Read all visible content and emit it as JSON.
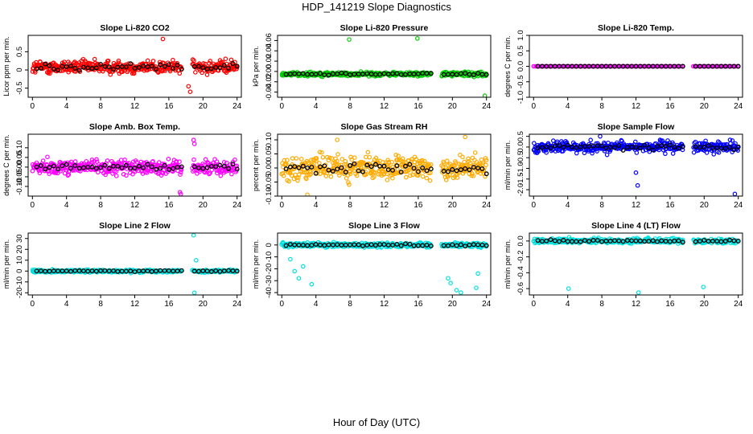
{
  "title": "HDP_141219  Slope Diagnostics",
  "xlabel": "Hour of Day (UTC)",
  "chart_data": [
    {
      "type": "scatter",
      "title": "Slope Li-820 CO2",
      "ylabel": "Licor ppm per min.",
      "color": "#ff0000",
      "ylim": [
        -0.75,
        0.95
      ],
      "yticks": [
        -0.5,
        0,
        0.5
      ],
      "yticklabels": [
        "-0.5",
        "0",
        "0.5"
      ],
      "center": 0.08,
      "spread": 0.18,
      "outliers": [
        {
          "x": 15.3,
          "y": 0.85
        },
        {
          "x": 18.3,
          "y": -0.45
        },
        {
          "x": 18.5,
          "y": -0.6
        }
      ],
      "gap": [
        17.5,
        18.7
      ]
    },
    {
      "type": "scatter",
      "title": "Slope Li-820 Pressure",
      "ylabel": "kPa per min.",
      "color": "#00cc00",
      "ylim": [
        -0.05,
        0.07
      ],
      "yticks": [
        -0.04,
        -0.02,
        0,
        0.02,
        0.04,
        0.06
      ],
      "yticklabels": [
        "-0.04",
        "-0.02",
        "0.00",
        "0.02",
        "0.04",
        "0.06"
      ],
      "center": -0.005,
      "spread": 0.004,
      "outliers": [
        {
          "x": 7.9,
          "y": 0.062
        },
        {
          "x": 15.9,
          "y": 0.064
        },
        {
          "x": 23.8,
          "y": -0.047
        }
      ],
      "gap": [
        17.5,
        18.7
      ]
    },
    {
      "type": "scatter",
      "title": "Slope Li-820 Temp.",
      "ylabel": "degrees C per min.",
      "color": "#ff00ff",
      "ylim": [
        -1.0,
        1.0
      ],
      "yticks": [
        -1.0,
        -0.5,
        0,
        0.5,
        1.0
      ],
      "yticklabels": [
        "-1.0",
        "-0.5",
        "0.0",
        "0.5",
        "1.0"
      ],
      "center": 0.0,
      "spread": 0.0,
      "outliers": [],
      "gap": [
        17.5,
        18.7
      ]
    },
    {
      "type": "scatter",
      "title": "Slope Amb. Box Temp.",
      "ylabel": "degrees C per min.",
      "color": "#ff00ff",
      "ylim": [
        -0.15,
        0.17
      ],
      "yticks": [
        -0.1,
        -0.05,
        0,
        0.05,
        0.1
      ],
      "yticklabels": [
        "-0.10",
        "-0.05",
        "0.00",
        "0.05",
        "0.10"
      ],
      "center": 0.0,
      "spread": 0.035,
      "outliers": [
        {
          "x": 17.3,
          "y": -0.13
        },
        {
          "x": 17.4,
          "y": -0.14
        },
        {
          "x": 18.9,
          "y": 0.14
        },
        {
          "x": 19.0,
          "y": 0.12
        }
      ],
      "gap": [
        17.5,
        18.7
      ]
    },
    {
      "type": "scatter",
      "title": "Slope Gas Stream RH",
      "ylabel": "percent per min.",
      "color": "#ffaa00",
      "ylim": [
        -0.1,
        0.12
      ],
      "yticks": [
        -0.1,
        -0.05,
        0,
        0.05,
        0.1
      ],
      "yticklabels": [
        "-0.10",
        "-0.05",
        "0.00",
        "0.05",
        "0.10"
      ],
      "center": 0.0,
      "spread": 0.04,
      "outliers": [
        {
          "x": 21.5,
          "y": 0.11
        },
        {
          "x": 6.5,
          "y": 0.1
        },
        {
          "x": 3.0,
          "y": -0.095
        }
      ],
      "gap": [
        17.5,
        18.7
      ]
    },
    {
      "type": "scatter",
      "title": "Slope Sample Flow",
      "ylabel": "ml/min per min.",
      "color": "#0000ff",
      "ylim": [
        -2.3,
        0.6
      ],
      "yticks": [
        -2.0,
        -1.5,
        -1.0,
        -0.5,
        0,
        0.5
      ],
      "yticklabels": [
        "-2.0",
        "-1.5",
        "-1.0",
        "-0.5",
        "0.0",
        "0.5"
      ],
      "center": 0.0,
      "spread": 0.25,
      "outliers": [
        {
          "x": 23.6,
          "y": -2.2
        },
        {
          "x": 12.2,
          "y": -1.8
        },
        {
          "x": 7.8,
          "y": 0.5
        },
        {
          "x": 12.0,
          "y": -1.2
        }
      ],
      "gap": [
        17.5,
        18.7
      ]
    },
    {
      "type": "scatter",
      "title": "Slope Line 2 Flow",
      "ylabel": "ml/min per min.",
      "color": "#00e0e0",
      "ylim": [
        -22,
        35
      ],
      "yticks": [
        -20,
        -10,
        0,
        10,
        20,
        30
      ],
      "yticklabels": [
        "-20",
        "-10",
        "0",
        "10",
        "20",
        "30"
      ],
      "center": 0.0,
      "spread": 1.2,
      "outliers": [
        {
          "x": 18.9,
          "y": 33
        },
        {
          "x": 19.0,
          "y": -20
        },
        {
          "x": 19.2,
          "y": 10
        }
      ],
      "gap": [
        17.5,
        18.7
      ]
    },
    {
      "type": "scatter",
      "title": "Slope Line 3 Flow",
      "ylabel": "ml/min per min.",
      "color": "#00e0e0",
      "ylim": [
        -42,
        10
      ],
      "yticks": [
        -40,
        -30,
        -20,
        -10,
        0
      ],
      "yticklabels": [
        "-40",
        "-30",
        "-20",
        "-10",
        "0"
      ],
      "center": 0.0,
      "spread": 2.0,
      "outliers": [
        {
          "x": 1.0,
          "y": -12
        },
        {
          "x": 1.5,
          "y": -22
        },
        {
          "x": 2.0,
          "y": -28
        },
        {
          "x": 3.5,
          "y": -33
        },
        {
          "x": 2.5,
          "y": -18
        },
        {
          "x": 19.5,
          "y": -28
        },
        {
          "x": 20.5,
          "y": -38
        },
        {
          "x": 21.0,
          "y": -40
        },
        {
          "x": 22.8,
          "y": -36
        },
        {
          "x": 23.0,
          "y": -24
        },
        {
          "x": 19.8,
          "y": -32
        }
      ],
      "gap": [
        17.5,
        18.7
      ]
    },
    {
      "type": "scatter",
      "title": "Slope Line 4 (LT) Flow",
      "ylabel": "ml/min per min.",
      "color": "#00e0e0",
      "ylim": [
        -0.68,
        0.1
      ],
      "yticks": [
        -0.6,
        -0.4,
        -0.2,
        0
      ],
      "yticklabels": [
        "-0.6",
        "-0.4",
        "-0.2",
        "0.0"
      ],
      "center": 0.0,
      "spread": 0.03,
      "outliers": [
        {
          "x": 4.1,
          "y": -0.6
        },
        {
          "x": 12.3,
          "y": -0.65
        },
        {
          "x": 19.9,
          "y": -0.58
        }
      ],
      "gap": [
        17.5,
        18.7
      ]
    }
  ],
  "xlim": [
    -0.5,
    24.5
  ],
  "xticks": [
    0,
    4,
    8,
    12,
    16,
    20,
    24
  ],
  "xticklabels": [
    "0",
    "4",
    "8",
    "12",
    "16",
    "20",
    "24"
  ]
}
